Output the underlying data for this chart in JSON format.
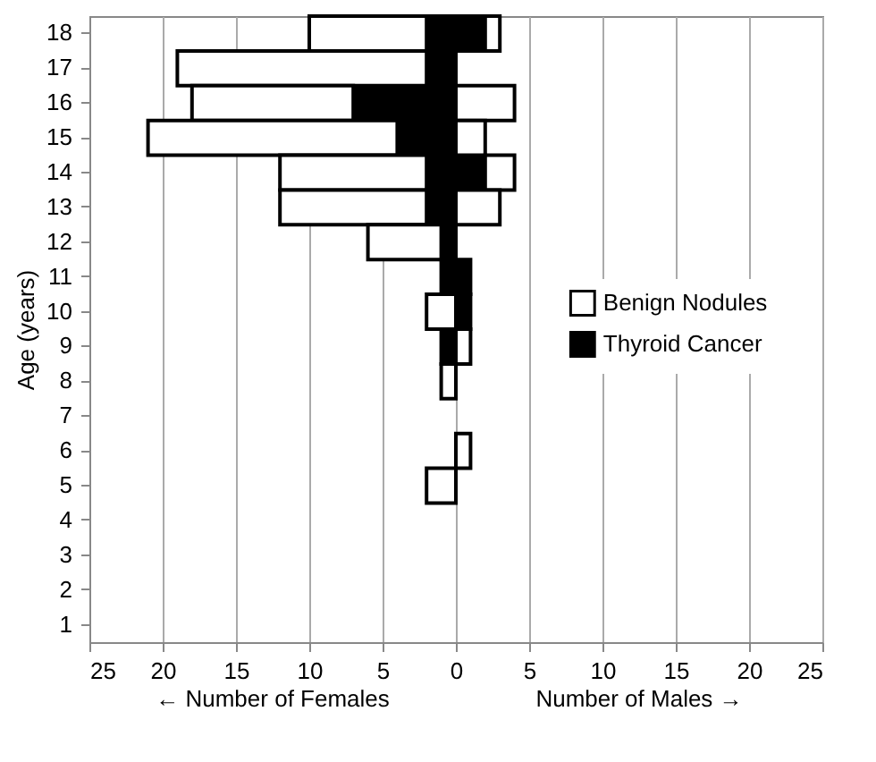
{
  "chart_data": {
    "type": "bar",
    "orientation": "horizontal",
    "stacked": true,
    "ylabel": "Age (years)",
    "categories": [
      "18",
      "17",
      "16",
      "15",
      "14",
      "13",
      "12",
      "11",
      "10",
      "9",
      "8",
      "7",
      "6",
      "5",
      "4",
      "3",
      "2",
      "1"
    ],
    "series": [
      {
        "name": "Thyroid Cancer",
        "color": "#000000",
        "values": [
          -2,
          -2,
          -7,
          -4,
          -2,
          -2,
          -1,
          -1,
          0,
          -1,
          0,
          0,
          0,
          0,
          0,
          0,
          0,
          0
        ]
      },
      {
        "color": "#000000",
        "values": [
          2,
          0,
          0,
          0,
          2,
          0,
          0,
          1,
          1,
          0,
          0,
          0,
          0,
          0,
          0,
          0,
          0,
          0
        ]
      },
      {
        "name": "Benign Nodules",
        "color": "#ffffff",
        "values": [
          -8,
          -17,
          -11,
          -17,
          -10,
          -10,
          -5,
          0,
          -2,
          0,
          -1,
          0,
          0,
          -2,
          0,
          0,
          0,
          0
        ]
      },
      {
        "color": "#ffffff",
        "values": [
          1,
          0,
          4,
          2,
          2,
          3,
          0,
          0,
          0,
          1,
          0,
          0,
          1,
          0,
          0,
          0,
          0,
          0
        ]
      }
    ],
    "xlim": [
      -25,
      25
    ],
    "xticks": [
      {
        "value": -25,
        "label": "25"
      },
      {
        "value": -20,
        "label": "20"
      },
      {
        "value": -15,
        "label": "15"
      },
      {
        "value": -10,
        "label": "10"
      },
      {
        "value": -5,
        "label": "5"
      },
      0,
      5,
      10,
      15,
      20,
      25
    ],
    "grid": "x",
    "legend": "right",
    "annotations": [
      "← Number of Females",
      "Number of Males →"
    ]
  }
}
